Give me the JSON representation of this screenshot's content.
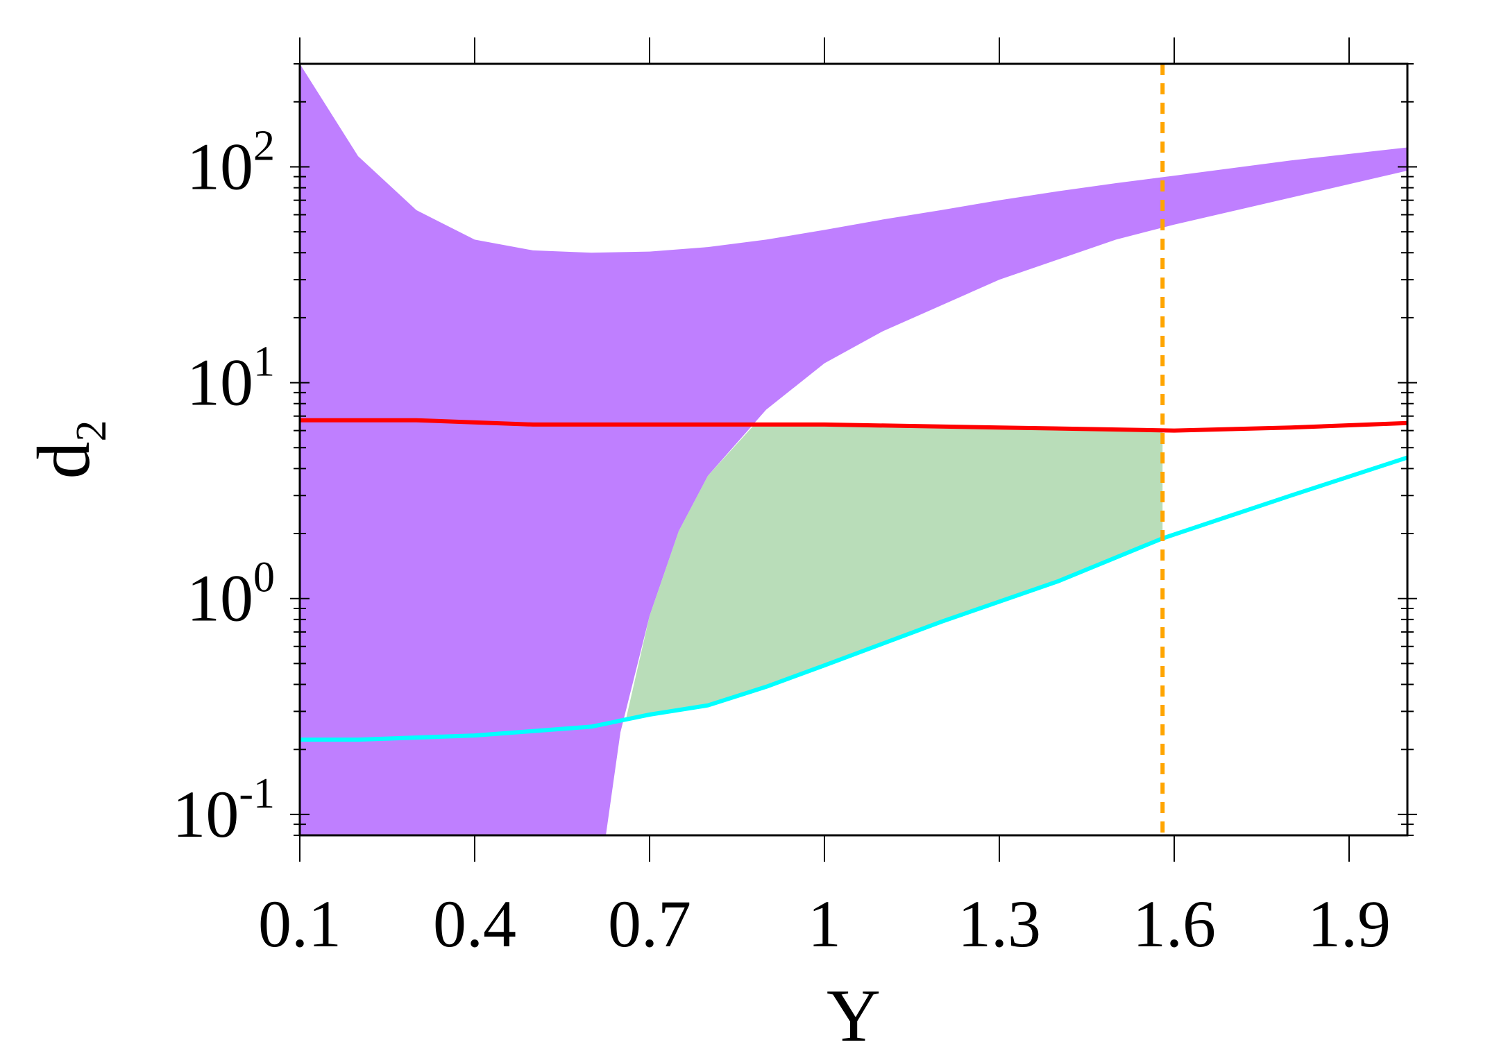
{
  "chart_data": {
    "type": "area",
    "xlabel": "Y",
    "ylabel": "d",
    "ylabel_subscript": "2",
    "xlim": [
      0.1,
      2.0
    ],
    "ylim": [
      0.08,
      300
    ],
    "yscale": "log",
    "grid": false,
    "xticks": [
      "0.1",
      "0.4",
      "0.7",
      "1",
      "1.3",
      "1.6",
      "1.9"
    ],
    "xtick_values": [
      0.1,
      0.4,
      0.7,
      1.0,
      1.3,
      1.6,
      1.9
    ],
    "yticks": [
      {
        "value": 0.1,
        "base": "10",
        "exp": "-1"
      },
      {
        "value": 1,
        "base": "10",
        "exp": "0"
      },
      {
        "value": 10,
        "base": "10",
        "exp": "1"
      },
      {
        "value": 100,
        "base": "10",
        "exp": "2"
      }
    ],
    "colors": {
      "purple_region": "#bf7fff",
      "green_region": "#b9ddb9",
      "red_line": "#ff0000",
      "cyan_line": "#00ffff",
      "orange_vline": "#ffa500"
    },
    "purple_region": {
      "upper": [
        [
          0.1,
          300
        ],
        [
          0.2,
          112
        ],
        [
          0.3,
          63
        ],
        [
          0.4,
          46
        ],
        [
          0.5,
          41
        ],
        [
          0.6,
          40
        ],
        [
          0.7,
          40.5
        ],
        [
          0.8,
          42.5
        ],
        [
          0.9,
          46
        ],
        [
          1.0,
          51
        ],
        [
          1.1,
          57
        ],
        [
          1.2,
          63
        ],
        [
          1.3,
          70
        ],
        [
          1.4,
          77
        ],
        [
          1.5,
          84
        ],
        [
          1.6,
          91
        ],
        [
          1.8,
          107
        ],
        [
          2.0,
          123
        ]
      ],
      "lower": [
        [
          2.0,
          96
        ],
        [
          1.6,
          54
        ],
        [
          1.5,
          46
        ],
        [
          1.3,
          30
        ],
        [
          1.1,
          17.3
        ],
        [
          1.0,
          12.3
        ],
        [
          0.9,
          7.5
        ],
        [
          0.8,
          3.7
        ],
        [
          0.75,
          2.05
        ],
        [
          0.7,
          0.83
        ],
        [
          0.65,
          0.24
        ],
        [
          0.625,
          0.08
        ]
      ],
      "left_edge": [
        [
          0.1,
          0.08
        ],
        [
          0.1,
          300
        ]
      ]
    },
    "green_region": {
      "top": [
        [
          0.66,
          0.28
        ],
        [
          0.7,
          0.83
        ],
        [
          0.75,
          2.05
        ],
        [
          0.8,
          3.7
        ],
        [
          0.88,
          6.4
        ],
        [
          1.0,
          6.4
        ],
        [
          1.3,
          6.2
        ],
        [
          1.58,
          6.0
        ]
      ],
      "bottom": [
        [
          1.58,
          1.9
        ],
        [
          1.4,
          1.2
        ],
        [
          1.2,
          0.78
        ],
        [
          1.0,
          0.49
        ],
        [
          0.8,
          0.32
        ],
        [
          0.66,
          0.28
        ]
      ]
    },
    "series": [
      {
        "color": "#ff0000",
        "points": [
          [
            0.1,
            6.7
          ],
          [
            0.3,
            6.7
          ],
          [
            0.5,
            6.4
          ],
          [
            0.8,
            6.4
          ],
          [
            1.0,
            6.4
          ],
          [
            1.3,
            6.2
          ],
          [
            1.6,
            6.0
          ],
          [
            1.8,
            6.2
          ],
          [
            2.0,
            6.5
          ]
        ]
      },
      {
        "color": "#00ffff",
        "points": [
          [
            0.1,
            0.222
          ],
          [
            0.2,
            0.222
          ],
          [
            0.4,
            0.232
          ],
          [
            0.6,
            0.255
          ],
          [
            0.7,
            0.29
          ],
          [
            0.8,
            0.32
          ],
          [
            0.9,
            0.39
          ],
          [
            1.0,
            0.49
          ],
          [
            1.2,
            0.78
          ],
          [
            1.4,
            1.2
          ],
          [
            1.58,
            1.9
          ],
          [
            1.8,
            3.0
          ],
          [
            2.0,
            4.5
          ]
        ]
      }
    ],
    "vline": {
      "x": 1.58,
      "color": "#ffa500",
      "style": "dashed"
    }
  }
}
